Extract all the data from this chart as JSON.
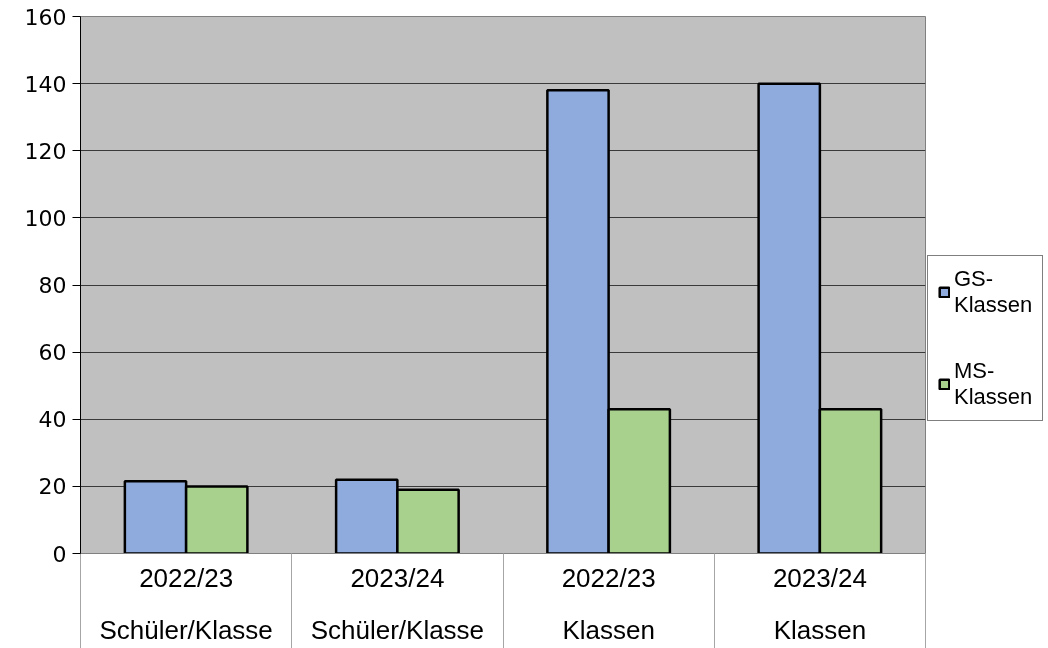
{
  "chart_data": {
    "type": "bar",
    "categories": [
      "2022/23 Schüler/Klasse",
      "2023/24 Schüler/Klasse",
      "2022/23 Klassen",
      "2023/24 Klassen"
    ],
    "series": [
      {
        "name": "GS-Klassen",
        "color": "#8faadc",
        "values": [
          21.5,
          22,
          138,
          140
        ]
      },
      {
        "name": "MS-Klassen",
        "color": "#a9d18e",
        "values": [
          20,
          19,
          43,
          43
        ]
      }
    ],
    "ylim": [
      0,
      160
    ],
    "yticks": [
      0,
      20,
      40,
      60,
      80,
      100,
      120,
      140,
      160
    ],
    "grid": "y",
    "legend": "right"
  }
}
